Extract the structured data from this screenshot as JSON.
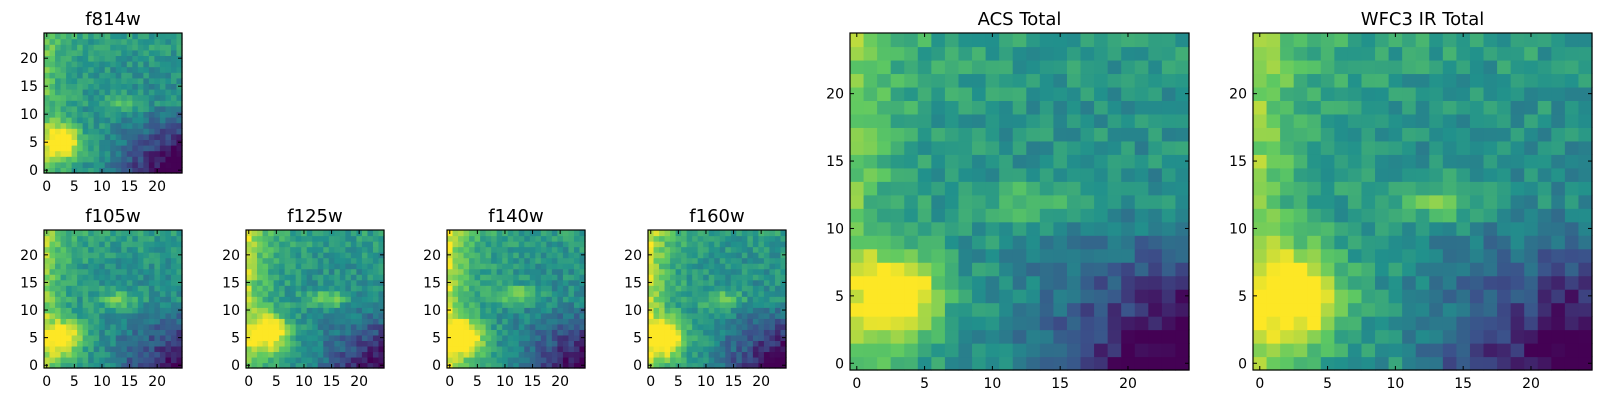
{
  "colormap": {
    "name": "viridis",
    "stops": [
      "#440154",
      "#3b528b",
      "#21918c",
      "#5ec962",
      "#fde725"
    ]
  },
  "chart_data": [
    {
      "type": "heatmap",
      "title": "f814w",
      "xlim": [
        0,
        24
      ],
      "ylim": [
        0,
        24
      ],
      "xticks": [
        0,
        5,
        10,
        15,
        20
      ],
      "yticks": [
        0,
        5,
        10,
        15,
        20
      ],
      "grid": false,
      "image": {
        "width": 25,
        "height": 25,
        "origin": "lower",
        "bright_source": {
          "x": 3,
          "y": 5,
          "level": 1.0
        },
        "ridge": {
          "x": 13,
          "y": 12,
          "level": 0.72
        },
        "left_edge_level": 0.72,
        "faint_region": "lower-right",
        "faint_level": 0.05
      }
    },
    {
      "type": "heatmap",
      "title": "f105w",
      "xlim": [
        0,
        24
      ],
      "ylim": [
        0,
        24
      ],
      "xticks": [
        0,
        5,
        10,
        15,
        20
      ],
      "yticks": [
        0,
        5,
        10,
        15,
        20
      ],
      "grid": false,
      "image": {
        "width": 25,
        "height": 25,
        "origin": "lower",
        "bright_source": {
          "x": 3,
          "y": 5,
          "level": 0.95
        },
        "ridge": {
          "x": 13,
          "y": 12,
          "level": 0.78
        },
        "left_edge_level": 0.8,
        "faint_region": "lower-right",
        "faint_level": 0.15
      }
    },
    {
      "type": "heatmap",
      "title": "f125w",
      "xlim": [
        0,
        24
      ],
      "ylim": [
        0,
        24
      ],
      "xticks": [
        0,
        5,
        10,
        15,
        20
      ],
      "yticks": [
        0,
        5,
        10,
        15,
        20
      ],
      "grid": false,
      "image": {
        "width": 25,
        "height": 25,
        "origin": "lower",
        "bright_source": {
          "x": 4,
          "y": 6,
          "level": 1.0
        },
        "ridge": {
          "x": 14,
          "y": 12,
          "level": 0.8
        },
        "left_edge_level": 0.85,
        "faint_region": "lower-right",
        "faint_level": 0.15
      }
    },
    {
      "type": "heatmap",
      "title": "f140w",
      "xlim": [
        0,
        24
      ],
      "ylim": [
        0,
        24
      ],
      "xticks": [
        0,
        5,
        10,
        15,
        20
      ],
      "yticks": [
        0,
        5,
        10,
        15,
        20
      ],
      "grid": false,
      "image": {
        "width": 25,
        "height": 25,
        "origin": "lower",
        "bright_source": {
          "x": 3,
          "y": 5,
          "level": 1.0
        },
        "ridge": {
          "x": 12,
          "y": 13,
          "level": 0.82
        },
        "left_edge_level": 0.9,
        "faint_region": "lower-right",
        "faint_level": 0.12
      }
    },
    {
      "type": "heatmap",
      "title": "f160w",
      "xlim": [
        0,
        24
      ],
      "ylim": [
        0,
        24
      ],
      "xticks": [
        0,
        5,
        10,
        15,
        20
      ],
      "yticks": [
        0,
        5,
        10,
        15,
        20
      ],
      "grid": false,
      "image": {
        "width": 25,
        "height": 25,
        "origin": "lower",
        "bright_source": {
          "x": 3,
          "y": 5,
          "level": 1.0
        },
        "ridge": {
          "x": 13,
          "y": 12,
          "level": 0.78
        },
        "left_edge_level": 0.88,
        "faint_region": "lower-right",
        "faint_level": 0.08
      }
    },
    {
      "type": "heatmap",
      "title": "ACS Total",
      "xlim": [
        0,
        24
      ],
      "ylim": [
        0,
        24
      ],
      "xticks": [
        0,
        5,
        10,
        15,
        20
      ],
      "yticks": [
        0,
        5,
        10,
        15,
        20
      ],
      "grid": false,
      "image": {
        "width": 25,
        "height": 25,
        "origin": "lower",
        "bright_source": {
          "x": 3,
          "y": 5,
          "level": 1.0
        },
        "ridge": {
          "x": 13,
          "y": 12,
          "level": 0.74
        },
        "left_edge_level": 0.75,
        "faint_region": "lower-right",
        "faint_level": 0.05
      }
    },
    {
      "type": "heatmap",
      "title": "WFC3 IR Total",
      "xlim": [
        0,
        24
      ],
      "ylim": [
        0,
        24
      ],
      "xticks": [
        0,
        5,
        10,
        15,
        20
      ],
      "yticks": [
        0,
        5,
        10,
        15,
        20
      ],
      "grid": false,
      "image": {
        "width": 25,
        "height": 25,
        "origin": "lower",
        "bright_source": {
          "x": 3,
          "y": 5,
          "level": 1.0
        },
        "ridge": {
          "x": 13,
          "y": 12,
          "level": 0.75
        },
        "left_edge_level": 0.8,
        "faint_region": "lower-right",
        "faint_level": 0.05
      }
    }
  ]
}
